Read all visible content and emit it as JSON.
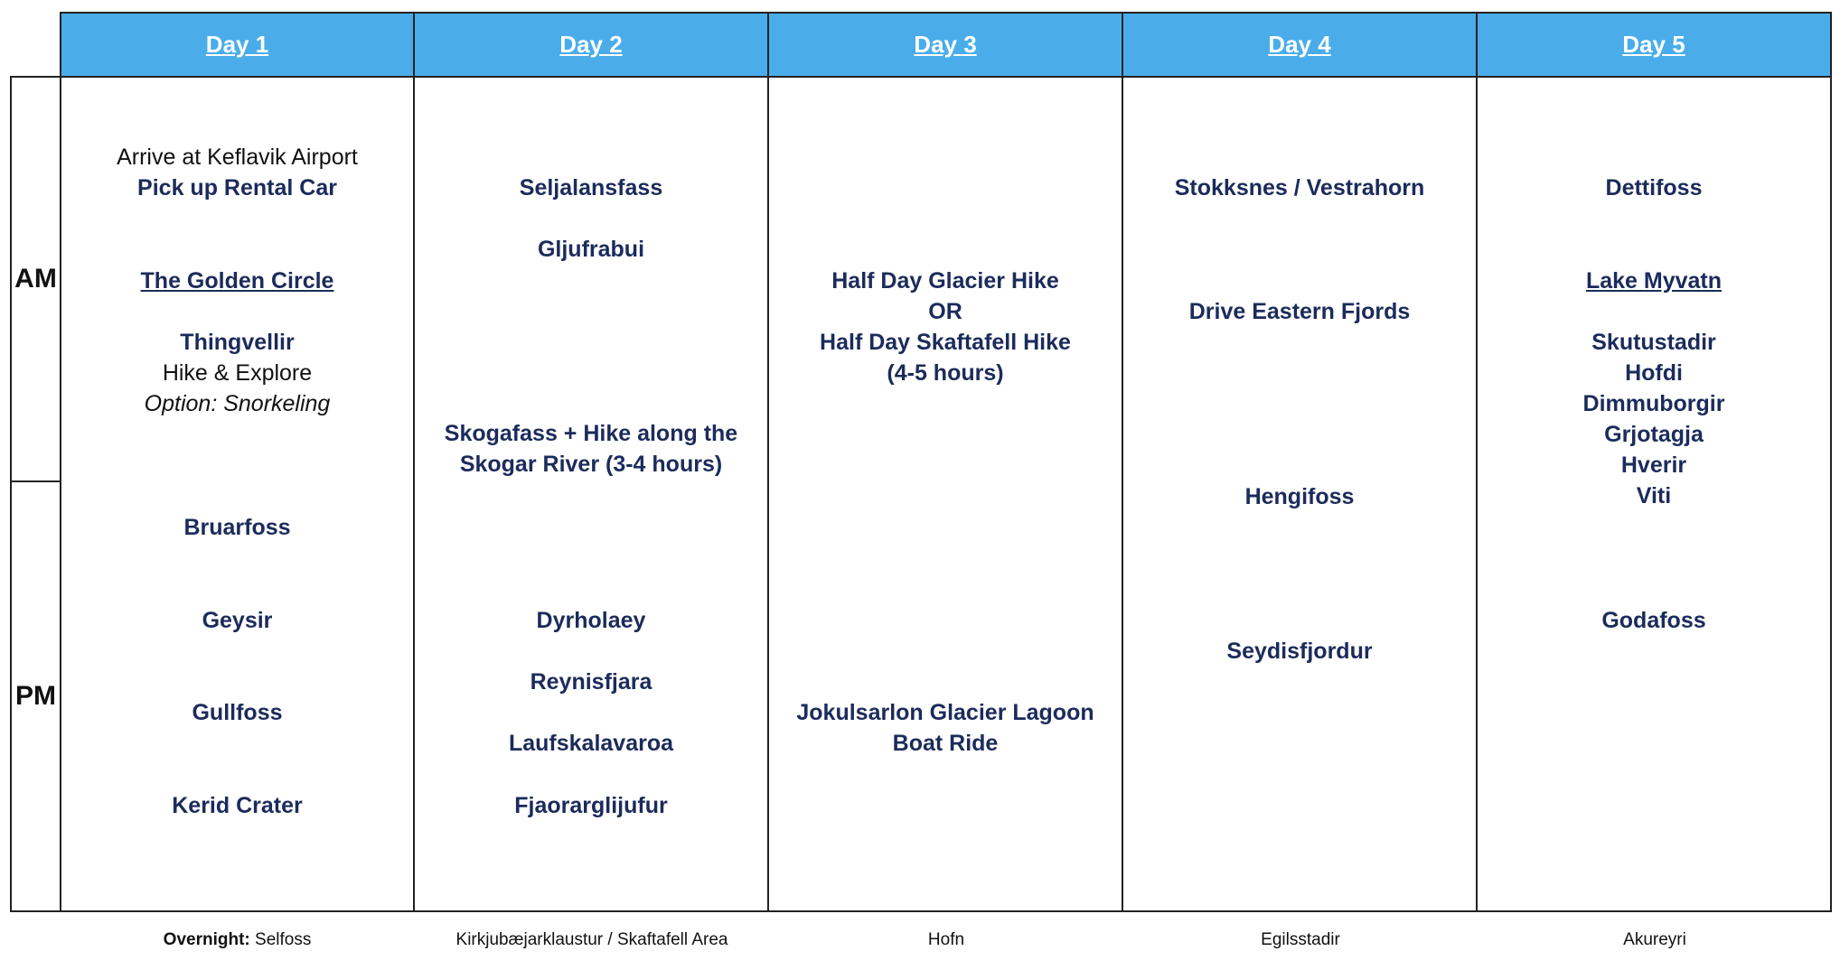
{
  "headers": [
    "Day 1",
    "Day 2",
    "Day 3",
    "Day 4",
    "Day 5"
  ],
  "side": {
    "am": "AM",
    "pm": "PM"
  },
  "day1": {
    "arrive": "Arrive at Keflavik Airport",
    "rental": "Pick up Rental Car",
    "golden": "The Golden Circle",
    "thingvellir": "Thingvellir",
    "hike": "Hike & Explore",
    "option": "Option: Snorkeling",
    "bruarfoss": "Bruarfoss",
    "geysir": "Geysir",
    "gullfoss": "Gullfoss",
    "kerid": "Kerid Crater"
  },
  "day2": {
    "seljalandsfoss": "Seljalansfass",
    "gljufrabui": "Gljufrabui",
    "skogafoss1": "Skogafass + Hike along the",
    "skogafoss2": "Skogar River (3-4 hours)",
    "dyrholaey": "Dyrholaey",
    "reynisfjara": "Reynisfjara",
    "laufskalavarda": "Laufskalavaroa",
    "fjadrargljufur": "Fjaorarglijufur"
  },
  "day3": {
    "glacier": "Half Day Glacier Hike",
    "or": "OR",
    "skaftafell": "Half Day Skaftafell Hike",
    "hours": "(4-5 hours)",
    "jokulsarlon": "Jokulsarlon Glacier Lagoon",
    "boat": "Boat Ride"
  },
  "day4": {
    "stokksnes": "Stokksnes / Vestrahorn",
    "fjords": "Drive Eastern Fjords",
    "hengifoss": "Hengifoss",
    "seydisfjordur": "Seydisfjordur"
  },
  "day5": {
    "dettifoss": "Dettifoss",
    "myvatn": "Lake Myvatn",
    "skutustadir": "Skutustadir",
    "hofdi": "Hofdi",
    "dimmuborgir": "Dimmuborgir",
    "grjotagja": "Grjotagja",
    "hverir": "Hverir",
    "viti": "Viti",
    "godafoss": "Godafoss"
  },
  "overnight": {
    "label": "Overnight:",
    "values": [
      "Selfoss",
      "Kirkjubæjarklaustur / Skaftafell Area",
      "Hofn",
      "Egilsstadir",
      "Akureyri"
    ]
  }
}
